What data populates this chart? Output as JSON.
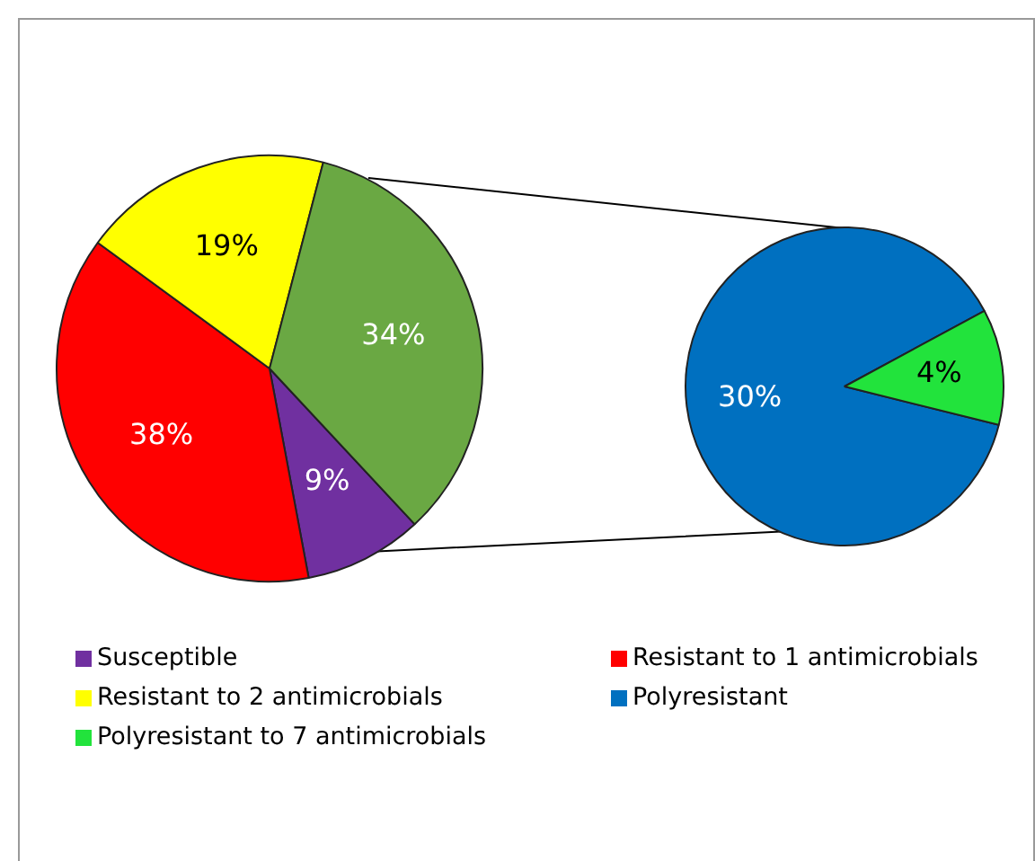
{
  "chart_data": [
    {
      "type": "pie",
      "categories": [
        "Susceptible",
        "Resistant to 1 antimicrobials",
        "Resistant to 2 antimicrobials",
        null
      ],
      "values": [
        9,
        38,
        19,
        34
      ],
      "colors": [
        "#7030a0",
        "#ff0000",
        "#ffff00",
        "#6aa843"
      ],
      "value_labels": [
        "9%",
        "38%",
        "19%",
        "34%"
      ],
      "legend": "bottom"
    },
    {
      "type": "pie",
      "categories": [
        "Polyresistant",
        "Polyresistant to 7 antimicrobials"
      ],
      "values": [
        30,
        4
      ],
      "colors": [
        "#0070c0",
        "#22e33c"
      ],
      "value_labels": [
        "30%",
        "4%"
      ],
      "legend": "bottom"
    }
  ]
}
